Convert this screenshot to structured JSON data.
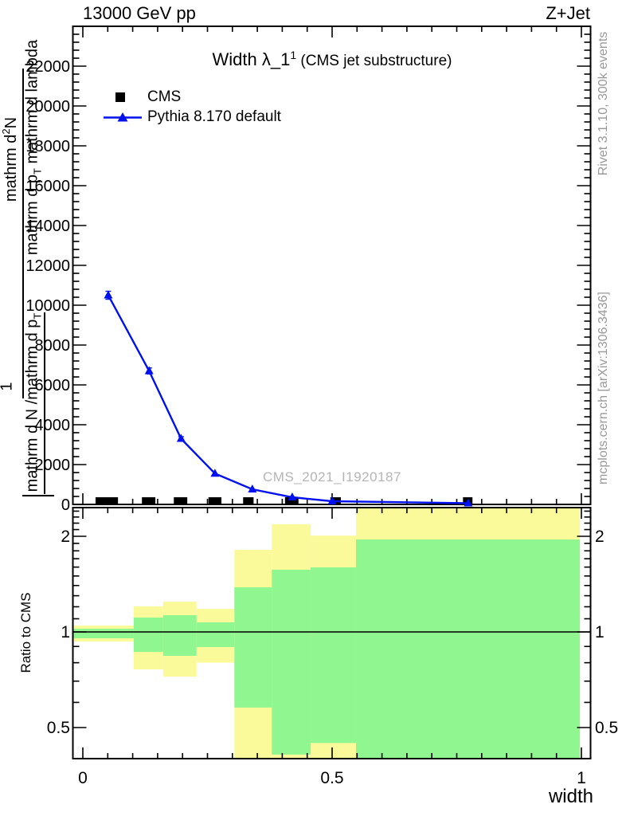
{
  "header": {
    "beam": "13000 GeV pp",
    "process": "Z+Jet"
  },
  "plot_title": {
    "main": "Width λ_1",
    "superscript": "1",
    "suffix": " (CMS jet substructure)"
  },
  "legend": [
    {
      "label": "CMS",
      "marker": "black-square"
    },
    {
      "label": "Pythia 8.170 default",
      "marker": "blue-line-triangle"
    }
  ],
  "watermark": "CMS_2021_I1920187",
  "side_notes": {
    "top": "Rivet 3.1.10,  300k events",
    "bottom": "mcplots.cern.ch [arXiv:1306.3436]"
  },
  "axis_labels": {
    "ratio_y": "Ratio to CMS",
    "x": "width",
    "y_fragments": {
      "frac2_num_pre": "mathrm d",
      "frac2_num_sup": "2",
      "frac2_num_post": "N",
      "frac2_den_pre": "mathrm d p",
      "frac2_den_sub": "T",
      "frac2_den_post": " mathrm d lambda",
      "frac1_num": "1",
      "frac1_den_pre": "mathrm d N /mathrm d p",
      "frac1_den_sub": "T"
    }
  },
  "colors": {
    "mc_line": "#0011ee",
    "data_marker": "#000000",
    "band_yellow": "#fafa9b",
    "band_green": "#90f690",
    "frame": "#000000"
  },
  "chart_data": [
    {
      "id": "main",
      "type": "line",
      "title": "Width λ_1^1 (CMS jet substructure)",
      "xlim": [
        0,
        1
      ],
      "ylim": [
        0,
        24000
      ],
      "grid": false,
      "yticks": [
        0,
        2000,
        4000,
        6000,
        8000,
        10000,
        12000,
        14000,
        16000,
        18000,
        20000,
        22000
      ],
      "yminor_step": 400,
      "xminor_step": 0.05,
      "xticks": {
        "values": [
          0,
          0.5,
          1
        ],
        "labels": [
          "0",
          "0.5",
          "1"
        ]
      },
      "series": [
        {
          "name": "CMS",
          "type": "scatter",
          "marker": "square",
          "color": "#000000",
          "x": [
            0.048,
            0.132,
            0.196,
            0.265,
            0.332,
            0.419,
            0.507,
            0.772
          ],
          "y": [
            150,
            150,
            150,
            150,
            150,
            150,
            150,
            150
          ],
          "marker_w_x": [
            0.045,
            0.027,
            0.027,
            0.026,
            0.021,
            0.027,
            0.021,
            0.019
          ]
        },
        {
          "name": "Pythia 8.170 default",
          "type": "line+marker",
          "marker": "triangle",
          "color": "#0011ee",
          "x": [
            0.051,
            0.133,
            0.197,
            0.265,
            0.34,
            0.42,
            0.5,
            0.773
          ],
          "y": [
            10500,
            6700,
            3300,
            1550,
            760,
            360,
            160,
            60
          ],
          "yerr": [
            200,
            150,
            100,
            60,
            40,
            25,
            15,
            10
          ]
        }
      ]
    },
    {
      "id": "ratio",
      "type": "band-steps",
      "ylabel": "Ratio to CMS",
      "yscale": "log",
      "ylim": [
        0.397,
        2.46
      ],
      "reference_line": 1,
      "yticks": {
        "values": [
          0.5,
          1,
          2
        ],
        "labels": [
          "0.5",
          "1",
          "2"
        ]
      },
      "yminors": [
        0.4,
        0.5,
        0.6,
        0.7,
        0.8,
        0.9,
        1.0,
        1.1,
        1.2,
        1.3,
        1.4,
        1.5,
        1.6,
        1.7,
        1.8,
        1.9,
        2.0,
        2.1,
        2.2,
        2.3,
        2.4
      ],
      "bins": [
        {
          "x0": -0.02,
          "x1": 0.102,
          "yellow": [
            0.933,
            1.047
          ],
          "green": [
            0.955,
            1.023
          ]
        },
        {
          "x0": 0.102,
          "x1": 0.161,
          "yellow": [
            0.762,
            1.203
          ],
          "green": [
            0.865,
            1.11
          ]
        },
        {
          "x0": 0.161,
          "x1": 0.228,
          "yellow": [
            0.723,
            1.245
          ],
          "green": [
            0.841,
            1.129
          ]
        },
        {
          "x0": 0.228,
          "x1": 0.304,
          "yellow": [
            0.8,
            1.182
          ],
          "green": [
            0.896,
            1.072
          ]
        },
        {
          "x0": 0.304,
          "x1": 0.379,
          "yellow": [
            0.397,
            1.813
          ],
          "green": [
            0.578,
            1.382
          ]
        },
        {
          "x0": 0.379,
          "x1": 0.457,
          "yellow": [
            0.397,
            2.183
          ],
          "green": [
            0.411,
            1.57
          ]
        },
        {
          "x0": 0.457,
          "x1": 0.548,
          "yellow": [
            0.397,
            2.01
          ],
          "green": [
            0.447,
            1.597
          ]
        },
        {
          "x0": 0.548,
          "x1": 0.997,
          "yellow": [
            0.397,
            2.46
          ],
          "green": [
            0.4,
            1.954
          ]
        }
      ]
    }
  ]
}
